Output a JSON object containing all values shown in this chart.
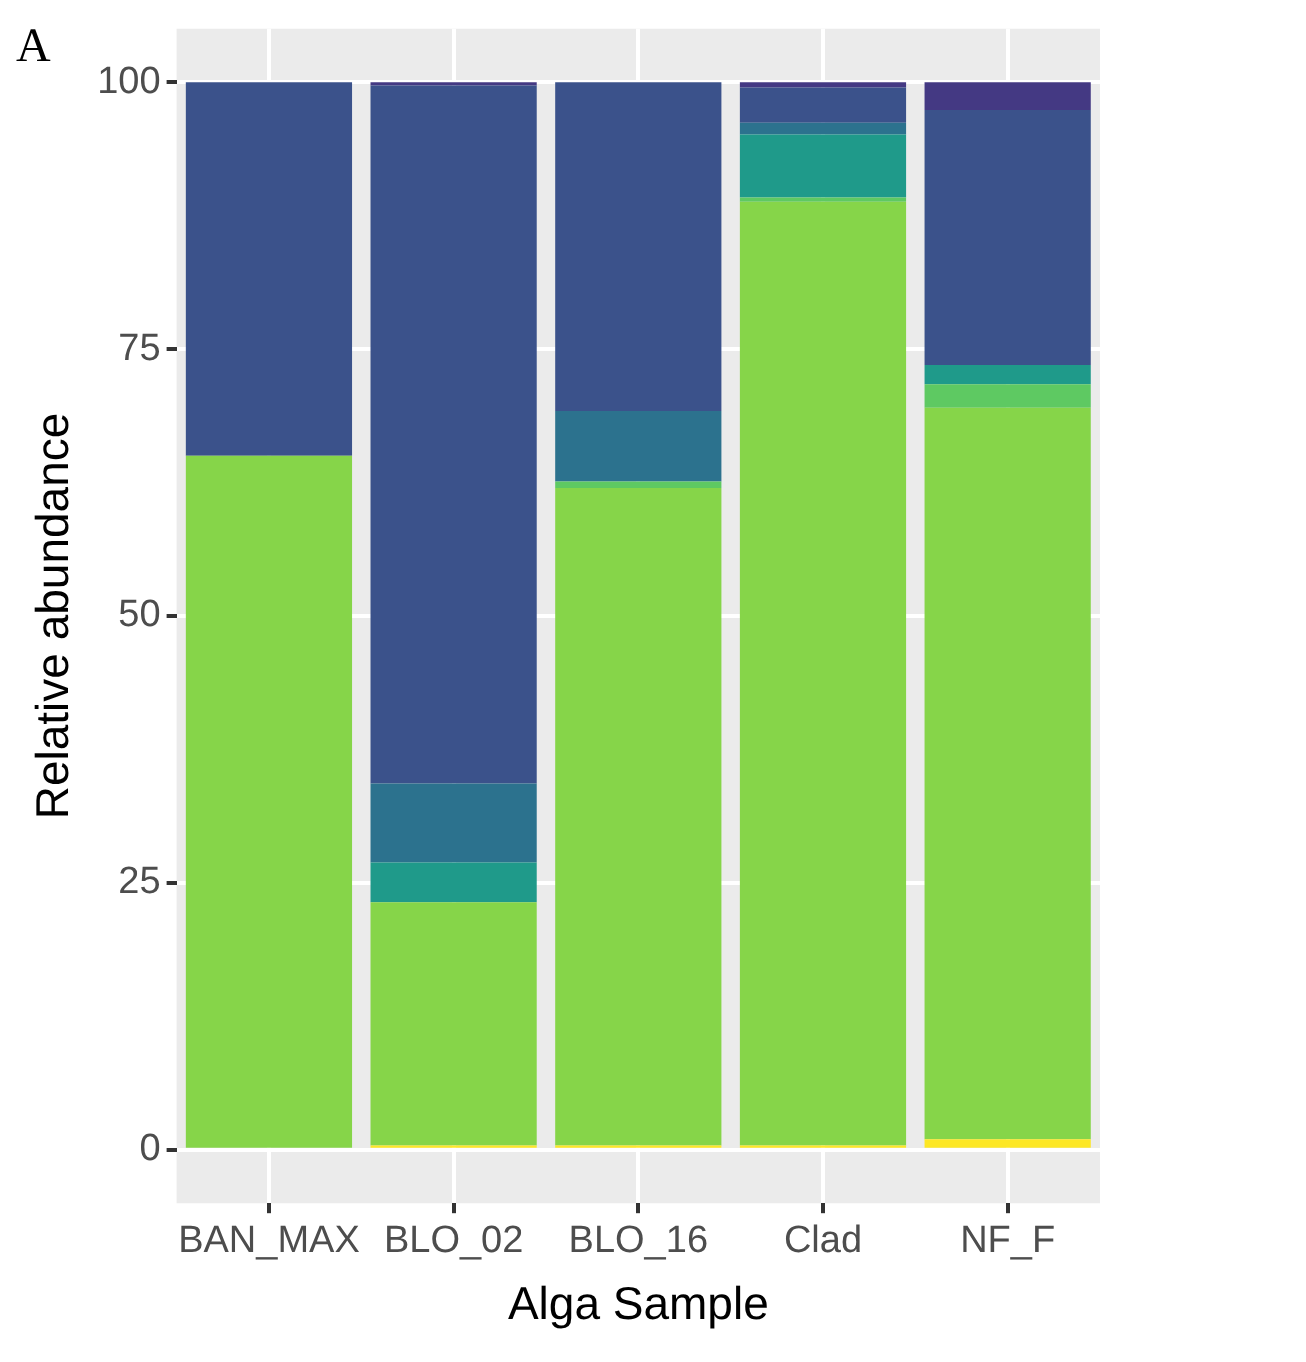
{
  "chart_data": {
    "type": "bar",
    "stacked": true,
    "xlabel": "Alga Sample",
    "ylabel": "Relative abundance",
    "annotations": [
      "A"
    ],
    "categories": [
      "BAN_MAX",
      "BLO_02",
      "BLO_16",
      "Clad",
      "NF_F"
    ],
    "series": [
      {
        "color": "#fde725",
        "values": [
          0,
          0.4,
          0.4,
          0.4,
          1.0
        ]
      },
      {
        "color": "#86d549",
        "values": [
          65,
          22.8,
          61.6,
          88.4,
          68.5
        ]
      },
      {
        "color": "#5ec962",
        "values": [
          0,
          0,
          0.6,
          0.4,
          2.2
        ]
      },
      {
        "color": "#1f9a8a",
        "values": [
          0,
          3.7,
          0,
          5.9,
          1.8
        ]
      },
      {
        "color": "#2c728e",
        "values": [
          0,
          7.4,
          6.6,
          1.1,
          0
        ]
      },
      {
        "color": "#3b528b",
        "values": [
          35,
          65.4,
          30.8,
          3.3,
          23.9
        ]
      },
      {
        "color": "#443983",
        "values": [
          0,
          0.3,
          0,
          0.5,
          2.6
        ]
      }
    ],
    "ylim": [
      -5,
      105
    ],
    "yticks": [
      0,
      25,
      50,
      75,
      100
    ],
    "grid": true,
    "legend": false
  }
}
